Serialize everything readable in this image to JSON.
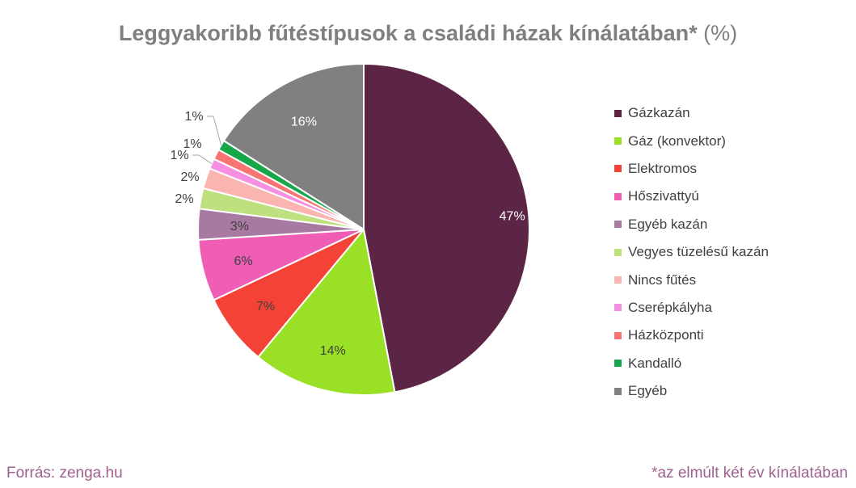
{
  "title": {
    "main": "Leggyakoribb fűtéstípusok a családi házak kínálatában*",
    "unit": "(%)"
  },
  "chart_data": {
    "type": "pie",
    "title": "Leggyakoribb fűtéstípusok a családi házak kínálatában* (%)",
    "slices": [
      {
        "label": "Gázkazán",
        "value": 47,
        "color": "#5c2445",
        "label_color": "#ffffff",
        "data_label": "47%"
      },
      {
        "label": "Gáz (konvektor)",
        "value": 14,
        "color": "#9ae026",
        "label_color": "#404040",
        "data_label": "14%"
      },
      {
        "label": "Elektromos",
        "value": 7,
        "color": "#f44336",
        "label_color": "#404040",
        "data_label": "7%"
      },
      {
        "label": "Hőszivattyú",
        "value": 6,
        "color": "#ef5db5",
        "label_color": "#404040",
        "data_label": "6%"
      },
      {
        "label": "Egyéb kazán",
        "value": 3,
        "color": "#a77aa2",
        "label_color": "#404040",
        "data_label": "3%"
      },
      {
        "label": "Vegyes tüzelésű kazán",
        "value": 2,
        "color": "#bfe07e",
        "label_color": "#404040",
        "data_label": "2%"
      },
      {
        "label": "Nincs fűtés",
        "value": 2,
        "color": "#fbb5b0",
        "label_color": "#404040",
        "data_label": "2%"
      },
      {
        "label": "Cserépkályha",
        "value": 1,
        "color": "#f78fe0",
        "label_color": "#404040",
        "data_label": "1%"
      },
      {
        "label": "Házközponti",
        "value": 1,
        "color": "#f87472",
        "label_color": "#404040",
        "data_label": "1%"
      },
      {
        "label": "Kandalló",
        "value": 1,
        "color": "#18a64a",
        "label_color": "#404040",
        "data_label": "1%"
      },
      {
        "label": "Egyéb",
        "value": 16,
        "color": "#808080",
        "label_color": "#ffffff",
        "data_label": "16%"
      }
    ],
    "legend_position": "right"
  },
  "footer": {
    "source": "Forrás: zenga.hu",
    "note": "*az elmúlt két év kínálatában"
  }
}
